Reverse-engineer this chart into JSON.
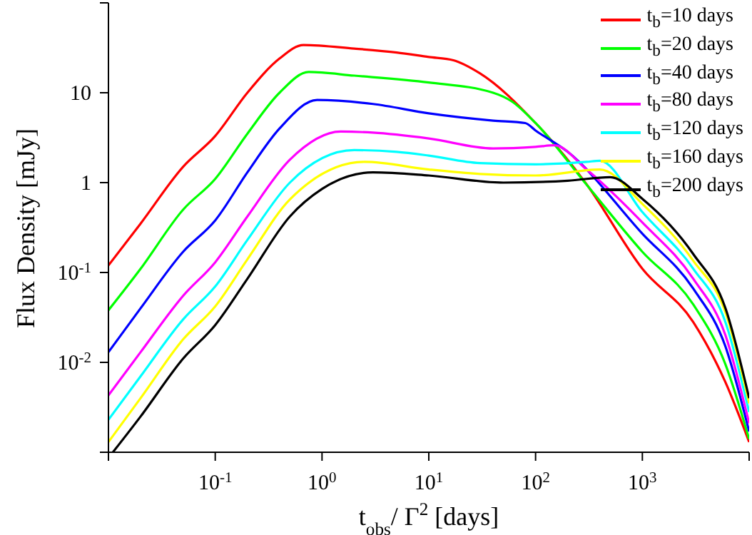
{
  "chart_data": {
    "type": "line",
    "xlabel": "t$_{obs}$/ Γ$^{2}$ [days]",
    "ylabel": "Flux Density [mJy]",
    "log": "xy",
    "grid": false,
    "legend": "top right",
    "marker": "none",
    "line_style": "solid",
    "xlim": [
      0.01,
      10000
    ],
    "ylim": [
      0.001,
      100
    ],
    "xticks": [
      {
        "value": 0.01,
        "label": null
      },
      {
        "value": 0.1,
        "label": "10$^{-1}$"
      },
      {
        "value": 1,
        "label": "10$^{0}$"
      },
      {
        "value": 10,
        "label": "10$^{1}$"
      },
      {
        "value": 100,
        "label": "10$^{2}$"
      },
      {
        "value": 1000,
        "label": "10$^{3}$"
      },
      {
        "value": 10000,
        "label": null
      }
    ],
    "yticks": [
      {
        "value": 0.001,
        "label": null
      },
      {
        "value": 0.01,
        "label": "10$^{-2}$"
      },
      {
        "value": 0.1,
        "label": "10$^{-1}$"
      },
      1,
      10,
      {
        "value": 100,
        "label": null
      }
    ],
    "series": [
      {
        "name": "t$_{b}$=10 days",
        "color": "#ff0000",
        "x": [
          0.01,
          0.02,
          0.05,
          0.1,
          0.2,
          0.4,
          0.67,
          2,
          5,
          10,
          17,
          30,
          100,
          300,
          1000,
          3000,
          6000,
          10000
        ],
        "values": [
          0.12,
          0.35,
          1.5,
          3.3,
          10,
          24,
          34,
          31,
          28,
          25,
          23,
          16.5,
          4.6,
          0.96,
          0.11,
          0.028,
          0.006,
          0.0013
        ]
      },
      {
        "name": "t$_{b}$=20 days",
        "color": "#00ff00",
        "x": [
          0.01,
          0.02,
          0.05,
          0.1,
          0.2,
          0.4,
          0.75,
          2,
          10,
          40,
          60,
          100,
          300,
          1000,
          3000,
          6000,
          10000
        ],
        "values": [
          0.038,
          0.11,
          0.5,
          1.1,
          3.5,
          10,
          17,
          15.5,
          13,
          10,
          8,
          4.6,
          0.95,
          0.17,
          0.044,
          0.0095,
          0.0014
        ]
      },
      {
        "name": "t$_{b}$=40 days",
        "color": "#0000ff",
        "x": [
          0.01,
          0.02,
          0.05,
          0.1,
          0.2,
          0.4,
          0.9,
          3,
          10,
          40,
          80,
          100,
          200,
          1000,
          3000,
          6000,
          10000
        ],
        "values": [
          0.013,
          0.04,
          0.17,
          0.38,
          1.3,
          4,
          8.3,
          7.5,
          5.9,
          4.9,
          4.6,
          3.8,
          2.2,
          0.27,
          0.066,
          0.015,
          0.0017
        ]
      },
      {
        "name": "t$_{b}$=80 days",
        "color": "#ff00ff",
        "x": [
          0.01,
          0.02,
          0.05,
          0.1,
          0.2,
          0.5,
          1.5,
          3,
          10,
          40,
          100,
          150,
          300,
          1000,
          3000,
          6000,
          10000
        ],
        "values": [
          0.0043,
          0.013,
          0.055,
          0.13,
          0.42,
          1.8,
          3.7,
          3.6,
          3.1,
          2.4,
          2.5,
          2.6,
          1.4,
          0.36,
          0.085,
          0.02,
          0.0021
        ]
      },
      {
        "name": "t$_{b}$=120 days",
        "color": "#00ffff",
        "x": [
          0.01,
          0.02,
          0.05,
          0.1,
          0.2,
          0.5,
          2,
          5,
          10,
          30,
          100,
          300,
          400,
          1000,
          3000,
          6000,
          10000
        ],
        "values": [
          0.0023,
          0.007,
          0.03,
          0.07,
          0.23,
          1.0,
          2.3,
          2.2,
          2.0,
          1.65,
          1.6,
          1.7,
          1.75,
          0.47,
          0.11,
          0.028,
          0.0028
        ]
      },
      {
        "name": "t$_{b}$=160 days",
        "color": "#ffff00",
        "x": [
          0.01,
          0.02,
          0.05,
          0.1,
          0.2,
          0.5,
          2.5,
          10,
          30,
          100,
          400,
          1000,
          3000,
          6000,
          10000
        ],
        "values": [
          0.0013,
          0.004,
          0.018,
          0.042,
          0.14,
          0.65,
          1.7,
          1.4,
          1.25,
          1.2,
          1.4,
          0.58,
          0.135,
          0.036,
          0.0035
        ]
      },
      {
        "name": "t$_{b}$=200 days",
        "color": "#000000",
        "x": [
          0.011,
          0.02,
          0.05,
          0.1,
          0.2,
          0.5,
          1,
          3,
          10,
          50,
          200,
          500,
          1000,
          3000,
          6000,
          10000
        ],
        "values": [
          0.001,
          0.0025,
          0.011,
          0.026,
          0.085,
          0.42,
          0.85,
          1.3,
          1.2,
          1.0,
          1.05,
          1.15,
          0.66,
          0.16,
          0.04,
          0.004
        ]
      }
    ]
  }
}
